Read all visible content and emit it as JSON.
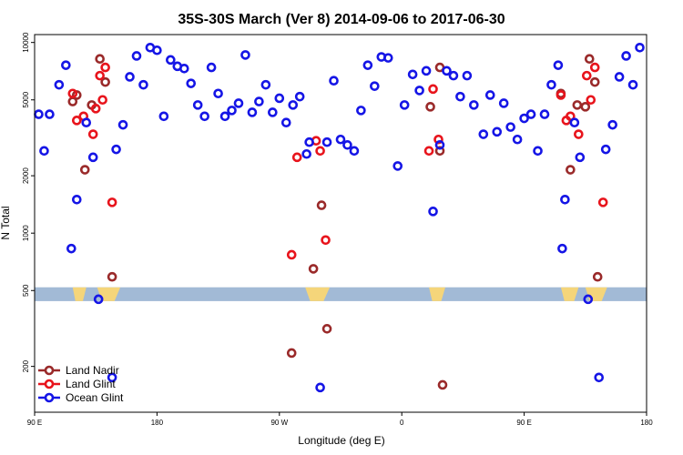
{
  "chart_data": {
    "type": "scatter",
    "title": "35S-30S March (Ver 8)   2014-09-06 to 2017-06-30",
    "xlabel": "Longitude (deg E)",
    "ylabel": "N Total",
    "xlim": [
      90,
      540
    ],
    "ylim": [
      115,
      11000
    ],
    "y_scale": "log",
    "grid": false,
    "legend_position": "bottom-left",
    "x_ticks": [
      {
        "value": 90,
        "label": "90 E"
      },
      {
        "value": 180,
        "label": "180"
      },
      {
        "value": 270,
        "label": "90 W"
      },
      {
        "value": 360,
        "label": "0"
      },
      {
        "value": 450,
        "label": "90 E"
      },
      {
        "value": 540,
        "label": "180"
      }
    ],
    "y_ticks": [
      {
        "value": 200,
        "label": "200"
      },
      {
        "value": 500,
        "label": "500"
      },
      {
        "value": 1000,
        "label": "1000"
      },
      {
        "value": 2000,
        "label": "2000"
      },
      {
        "value": 5000,
        "label": "5000"
      },
      {
        "value": 10000,
        "label": "10000"
      }
    ],
    "map_strip": {
      "y_range": [
        440,
        520
      ],
      "ocean_color": "#a2bad6",
      "land_color": "#f5d57a",
      "land_segments": [
        [
          118,
          128
        ],
        [
          136,
          153
        ],
        [
          289,
          307
        ],
        [
          380,
          392
        ],
        [
          477,
          490
        ],
        [
          495,
          511
        ]
      ]
    },
    "series": [
      {
        "name": "Land Nadir",
        "color": "#9a2a2a",
        "points": [
          {
            "x": 118,
            "y": 4900
          },
          {
            "x": 121,
            "y": 5300
          },
          {
            "x": 127,
            "y": 2150
          },
          {
            "x": 132,
            "y": 4700
          },
          {
            "x": 138,
            "y": 8200
          },
          {
            "x": 147,
            "y": 590
          },
          {
            "x": 142,
            "y": 6200
          },
          {
            "x": 279,
            "y": 235
          },
          {
            "x": 295,
            "y": 650
          },
          {
            "x": 301,
            "y": 1400
          },
          {
            "x": 305,
            "y": 315
          },
          {
            "x": 381,
            "y": 4600
          },
          {
            "x": 388,
            "y": 7400
          },
          {
            "x": 388,
            "y": 2700
          },
          {
            "x": 390,
            "y": 160
          },
          {
            "x": 477,
            "y": 5400
          },
          {
            "x": 484,
            "y": 2150
          },
          {
            "x": 489,
            "y": 4700
          },
          {
            "x": 498,
            "y": 8200
          },
          {
            "x": 504,
            "y": 590
          },
          {
            "x": 502,
            "y": 6200
          },
          {
            "x": 495,
            "y": 4600
          }
        ]
      },
      {
        "name": "Land Glint",
        "color": "#e8141c",
        "points": [
          {
            "x": 118,
            "y": 5400
          },
          {
            "x": 121,
            "y": 3900
          },
          {
            "x": 126,
            "y": 4100
          },
          {
            "x": 133,
            "y": 3300
          },
          {
            "x": 138,
            "y": 6700
          },
          {
            "x": 147,
            "y": 1450
          },
          {
            "x": 142,
            "y": 7400
          },
          {
            "x": 140,
            "y": 5000
          },
          {
            "x": 135,
            "y": 4500
          },
          {
            "x": 279,
            "y": 770
          },
          {
            "x": 283,
            "y": 2500
          },
          {
            "x": 297,
            "y": 3050
          },
          {
            "x": 300,
            "y": 2700
          },
          {
            "x": 304,
            "y": 920
          },
          {
            "x": 380,
            "y": 2700
          },
          {
            "x": 383,
            "y": 5700
          },
          {
            "x": 387,
            "y": 3100
          },
          {
            "x": 477,
            "y": 5300
          },
          {
            "x": 481,
            "y": 3900
          },
          {
            "x": 484,
            "y": 4100
          },
          {
            "x": 490,
            "y": 3300
          },
          {
            "x": 496,
            "y": 6700
          },
          {
            "x": 508,
            "y": 1450
          },
          {
            "x": 502,
            "y": 7400
          },
          {
            "x": 499,
            "y": 5000
          }
        ]
      },
      {
        "name": "Ocean Glint",
        "color": "#1515e6",
        "points": [
          {
            "x": 93,
            "y": 4200
          },
          {
            "x": 97,
            "y": 2700
          },
          {
            "x": 101,
            "y": 4200
          },
          {
            "x": 108,
            "y": 6000
          },
          {
            "x": 113,
            "y": 7600
          },
          {
            "x": 117,
            "y": 830
          },
          {
            "x": 121,
            "y": 1500
          },
          {
            "x": 128,
            "y": 3800
          },
          {
            "x": 133,
            "y": 2500
          },
          {
            "x": 137,
            "y": 450
          },
          {
            "x": 147,
            "y": 175
          },
          {
            "x": 150,
            "y": 2750
          },
          {
            "x": 155,
            "y": 3700
          },
          {
            "x": 160,
            "y": 6600
          },
          {
            "x": 165,
            "y": 8500
          },
          {
            "x": 170,
            "y": 6000
          },
          {
            "x": 175,
            "y": 9400
          },
          {
            "x": 180,
            "y": 9100
          },
          {
            "x": 185,
            "y": 4100
          },
          {
            "x": 190,
            "y": 8100
          },
          {
            "x": 195,
            "y": 7500
          },
          {
            "x": 200,
            "y": 7300
          },
          {
            "x": 205,
            "y": 6100
          },
          {
            "x": 210,
            "y": 4700
          },
          {
            "x": 215,
            "y": 4100
          },
          {
            "x": 220,
            "y": 7400
          },
          {
            "x": 225,
            "y": 5400
          },
          {
            "x": 230,
            "y": 4100
          },
          {
            "x": 235,
            "y": 4400
          },
          {
            "x": 240,
            "y": 4800
          },
          {
            "x": 245,
            "y": 8600
          },
          {
            "x": 250,
            "y": 4300
          },
          {
            "x": 255,
            "y": 4900
          },
          {
            "x": 260,
            "y": 6000
          },
          {
            "x": 265,
            "y": 4300
          },
          {
            "x": 270,
            "y": 5100
          },
          {
            "x": 275,
            "y": 3800
          },
          {
            "x": 280,
            "y": 4700
          },
          {
            "x": 285,
            "y": 5200
          },
          {
            "x": 290,
            "y": 2600
          },
          {
            "x": 292,
            "y": 3000
          },
          {
            "x": 300,
            "y": 155
          },
          {
            "x": 305,
            "y": 3000
          },
          {
            "x": 310,
            "y": 6300
          },
          {
            "x": 315,
            "y": 3100
          },
          {
            "x": 320,
            "y": 2900
          },
          {
            "x": 325,
            "y": 2700
          },
          {
            "x": 330,
            "y": 4400
          },
          {
            "x": 335,
            "y": 7600
          },
          {
            "x": 340,
            "y": 5900
          },
          {
            "x": 345,
            "y": 8400
          },
          {
            "x": 350,
            "y": 8300
          },
          {
            "x": 357,
            "y": 2250
          },
          {
            "x": 362,
            "y": 4700
          },
          {
            "x": 368,
            "y": 6800
          },
          {
            "x": 373,
            "y": 5600
          },
          {
            "x": 378,
            "y": 7100
          },
          {
            "x": 383,
            "y": 1300
          },
          {
            "x": 388,
            "y": 2900
          },
          {
            "x": 393,
            "y": 7100
          },
          {
            "x": 398,
            "y": 6700
          },
          {
            "x": 403,
            "y": 5200
          },
          {
            "x": 408,
            "y": 6700
          },
          {
            "x": 413,
            "y": 4700
          },
          {
            "x": 420,
            "y": 3300
          },
          {
            "x": 425,
            "y": 5300
          },
          {
            "x": 430,
            "y": 3400
          },
          {
            "x": 435,
            "y": 4800
          },
          {
            "x": 440,
            "y": 3600
          },
          {
            "x": 445,
            "y": 3100
          },
          {
            "x": 450,
            "y": 4000
          },
          {
            "x": 455,
            "y": 4200
          },
          {
            "x": 460,
            "y": 2700
          },
          {
            "x": 465,
            "y": 4200
          },
          {
            "x": 470,
            "y": 6000
          },
          {
            "x": 475,
            "y": 7600
          },
          {
            "x": 480,
            "y": 1500
          },
          {
            "x": 478,
            "y": 830
          },
          {
            "x": 487,
            "y": 3800
          },
          {
            "x": 491,
            "y": 2500
          },
          {
            "x": 497,
            "y": 450
          },
          {
            "x": 505,
            "y": 175
          },
          {
            "x": 510,
            "y": 2750
          },
          {
            "x": 515,
            "y": 3700
          },
          {
            "x": 520,
            "y": 6600
          },
          {
            "x": 525,
            "y": 8500
          },
          {
            "x": 530,
            "y": 6000
          },
          {
            "x": 535,
            "y": 9400
          }
        ]
      }
    ]
  }
}
